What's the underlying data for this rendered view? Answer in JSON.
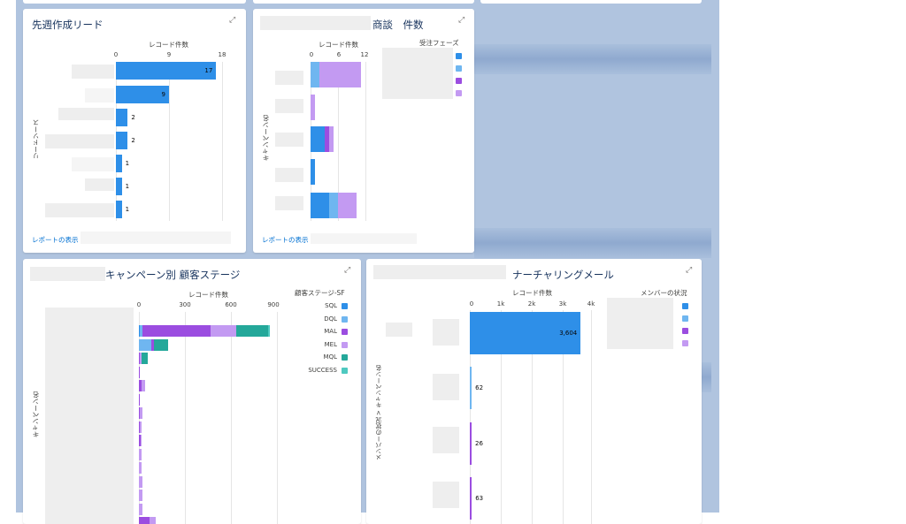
{
  "colors": {
    "blue": "#2e8fe8",
    "lightblue": "#6fb6f0",
    "purple": "#9b4de0",
    "lavender": "#c39af2",
    "teal": "#24a89a",
    "turquoise": "#4ec9c0"
  },
  "card1": {
    "title": "先週作成リード",
    "expand_icon": "expand-icon",
    "x_axis_title": "レコード件数",
    "y_axis_title": "リードソース",
    "ticks": [
      "0",
      "9",
      "18"
    ],
    "link": "レポートの表示",
    "chart_data": {
      "type": "bar",
      "orientation": "horizontal",
      "xlabel": "レコード件数",
      "ylabel": "リードソース",
      "xlim": [
        0,
        18
      ],
      "values": [
        17,
        9,
        2,
        2,
        1,
        1,
        1
      ],
      "labels": [
        "17",
        "9",
        "2",
        "2",
        "1",
        "1",
        "1"
      ]
    }
  },
  "card2": {
    "title": "商談　件数",
    "expand_icon": "expand-icon",
    "x_axis_title": "レコード件数",
    "y_axis_title": "キャンペーン名",
    "legend_title": "受注フェーズ",
    "ticks": [
      "0",
      "6",
      "12"
    ],
    "link": "レポートの表示",
    "chart_data": {
      "type": "bar",
      "orientation": "horizontal",
      "stacked": true,
      "xlabel": "レコード件数",
      "ylabel": "キャンペーン名",
      "xlim": [
        0,
        12
      ],
      "series": [
        {
          "color": "#2e8fe8",
          "values": [
            0,
            0,
            3,
            1,
            4
          ]
        },
        {
          "color": "#6fb6f0",
          "values": [
            2,
            0,
            0,
            0,
            2
          ]
        },
        {
          "color": "#9b4de0",
          "values": [
            0,
            0,
            1,
            0,
            0
          ]
        },
        {
          "color": "#c39af2",
          "values": [
            9,
            1,
            1,
            0,
            4
          ]
        }
      ]
    }
  },
  "card3": {
    "title": "キャンペーン別 顧客ステージ",
    "expand_icon": "expand-icon",
    "x_axis_title": "レコード件数",
    "y_axis_title": "キャンペーン名",
    "legend_title": "顧客ステージ-SF",
    "ticks": [
      "0",
      "300",
      "600",
      "900"
    ],
    "legend": [
      "SQL",
      "DQL",
      "MAL",
      "MEL",
      "MQL",
      "SUCCESS"
    ],
    "chart_data": {
      "type": "bar",
      "orientation": "horizontal",
      "stacked": true,
      "xlabel": "レコード件数",
      "ylabel": "キャンペーン名",
      "xlim": [
        0,
        900
      ],
      "series": [
        {
          "name": "SQL",
          "color": "#2e8fe8",
          "values": [
            5,
            0,
            0,
            0,
            0,
            0,
            0,
            0,
            0,
            0,
            0,
            0,
            0,
            0,
            0,
            0
          ]
        },
        {
          "name": "DQL",
          "color": "#6fb6f0",
          "values": [
            20,
            80,
            0,
            0,
            0,
            0,
            0,
            0,
            0,
            0,
            0,
            0,
            0,
            0,
            0,
            0
          ]
        },
        {
          "name": "MAL",
          "color": "#9b4de0",
          "values": [
            440,
            20,
            5,
            5,
            20,
            5,
            5,
            5,
            10,
            0,
            0,
            0,
            0,
            0,
            70,
            5
          ]
        },
        {
          "name": "MEL",
          "color": "#c39af2",
          "values": [
            170,
            0,
            15,
            0,
            20,
            0,
            20,
            10,
            10,
            15,
            15,
            25,
            25,
            25,
            40,
            10
          ]
        },
        {
          "name": "MQL",
          "color": "#24a89a",
          "values": [
            210,
            90,
            40,
            0,
            0,
            0,
            0,
            0,
            0,
            0,
            0,
            0,
            0,
            0,
            0,
            0
          ]
        },
        {
          "name": "SUCCESS",
          "color": "#4ec9c0",
          "values": [
            10,
            0,
            0,
            0,
            0,
            0,
            0,
            0,
            0,
            0,
            0,
            0,
            0,
            0,
            0,
            0
          ]
        }
      ]
    }
  },
  "card4": {
    "title": "ナーチャリングメール",
    "expand_icon": "expand-icon",
    "x_axis_title": "レコード件数",
    "y_axis_title": "メンバーの状況 > キャンペーン名",
    "legend_title": "メンバーの状況",
    "ticks": [
      "0",
      "1k",
      "2k",
      "3k",
      "4k"
    ],
    "chart_data": {
      "type": "bar",
      "orientation": "horizontal",
      "xlabel": "レコード件数",
      "ylabel": "メンバーの状況 > キャンペーン名",
      "xlim": [
        0,
        4000
      ],
      "values": [
        3604,
        62,
        26,
        63
      ],
      "labels": [
        "3,604",
        "62",
        "26",
        "63"
      ],
      "colors": [
        "#2e8fe8",
        "#6fb6f0",
        "#9b4de0",
        "#9b4de0"
      ]
    }
  }
}
